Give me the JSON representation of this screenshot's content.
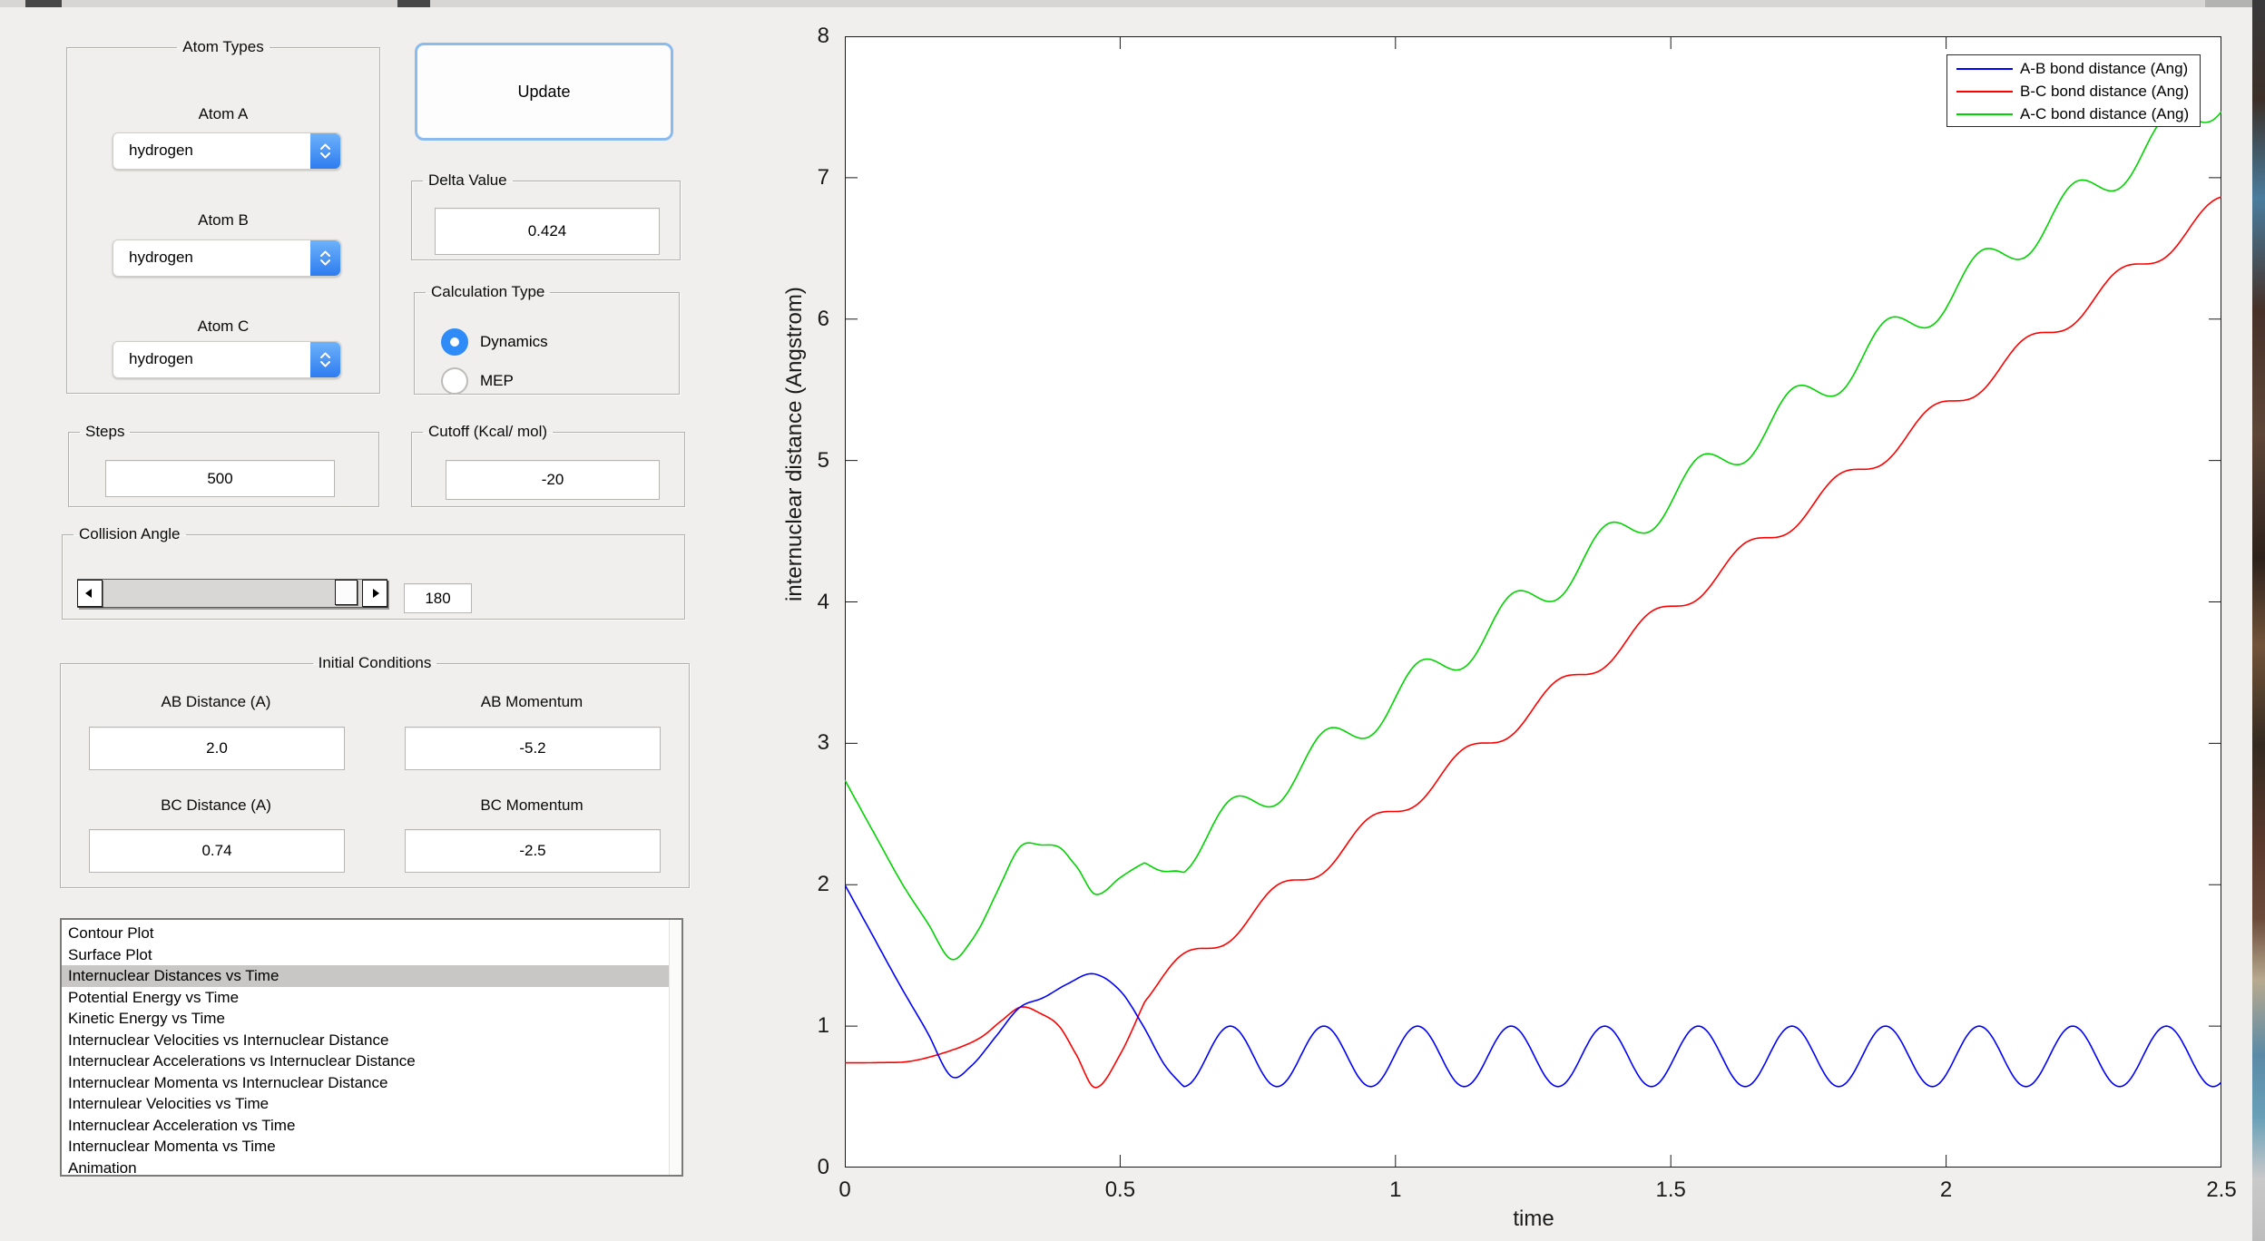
{
  "panels": {
    "atom_types": {
      "title": "Atom Types",
      "fields": [
        {
          "label": "Atom A",
          "value": "hydrogen"
        },
        {
          "label": "Atom B",
          "value": "hydrogen"
        },
        {
          "label": "Atom C",
          "value": "hydrogen"
        }
      ]
    },
    "update_button_label": "Update",
    "delta": {
      "title": "Delta Value",
      "value": "0.424"
    },
    "calc_type": {
      "title": "Calculation Type",
      "options": [
        {
          "label": "Dynamics",
          "selected": true
        },
        {
          "label": "MEP",
          "selected": false
        }
      ]
    },
    "steps": {
      "title": "Steps",
      "value": "500"
    },
    "cutoff": {
      "title": "Cutoff (Kcal/ mol)",
      "value": "-20"
    },
    "collision": {
      "title": "Collision Angle",
      "value": "180"
    },
    "initial": {
      "title": "Initial Conditions",
      "fields": [
        {
          "label": "AB Distance (A)",
          "value": "2.0"
        },
        {
          "label": "AB Momentum",
          "value": "-5.2"
        },
        {
          "label": "BC Distance (A)",
          "value": "0.74"
        },
        {
          "label": "BC Momentum",
          "value": "-2.5"
        }
      ]
    },
    "plot_list": {
      "selected_index": 2,
      "items": [
        "Contour Plot",
        "Surface Plot",
        "Internuclear Distances vs Time",
        "Potential Energy vs Time",
        "Kinetic Energy vs Time",
        "Internuclear Velocities vs Internuclear Distance",
        "Internuclear Accelerations vs Internuclear Distance",
        "Internuclear Momenta vs Internuclear Distance",
        "Internulear Velocities vs Time",
        "Internuclear Acceleration vs Time",
        "Internuclear Momenta vs Time",
        "Animation"
      ]
    }
  },
  "chart_data": {
    "type": "line",
    "title": "",
    "xlabel": "time",
    "ylabel": "internuclear distance (Angstrom)",
    "xlim": [
      0,
      2.5
    ],
    "ylim": [
      0,
      8
    ],
    "xticks": [
      0,
      0.5,
      1,
      1.5,
      2,
      2.5
    ],
    "xtick_labels": [
      "0",
      "0.5",
      "1",
      "1.5",
      "2",
      "2.5"
    ],
    "yticks": [
      0,
      1,
      2,
      3,
      4,
      5,
      6,
      7,
      8
    ],
    "ytick_labels": [
      "0",
      "1",
      "2",
      "3",
      "4",
      "5",
      "6",
      "7",
      "8"
    ],
    "grid": false,
    "legend_position": "top-right",
    "legend": [
      {
        "label": "A-B bond distance (Ang)",
        "color": "#0000ff"
      },
      {
        "label": "B-C bond distance (Ang)",
        "color": "#ff0000"
      },
      {
        "label": "A-C bond distance (Ang)",
        "color": "#00d400"
      }
    ],
    "sample_step": 0.004,
    "series": [
      {
        "name": "A-B",
        "color": "#0000ff",
        "spline": [
          [
            0,
            2.0
          ],
          [
            0.05,
            1.645
          ],
          [
            0.1,
            1.29
          ],
          [
            0.15,
            0.955
          ],
          [
            0.193,
            0.645
          ],
          [
            0.23,
            0.72
          ],
          [
            0.273,
            0.92
          ],
          [
            0.317,
            1.13
          ],
          [
            0.36,
            1.2
          ],
          [
            0.405,
            1.3
          ],
          [
            0.451,
            1.37
          ],
          [
            0.5,
            1.25
          ],
          [
            0.542,
            1.0
          ],
          [
            0.58,
            0.73
          ],
          [
            0.615,
            0.572
          ]
        ],
        "osc": {
          "start": 0.615,
          "mean": 0.786,
          "amp": 0.214,
          "period": 0.17,
          "phase": 0.615
        }
      },
      {
        "name": "B-C",
        "color": "#ff0000",
        "spline": [
          [
            0,
            0.74
          ],
          [
            0.06,
            0.742
          ],
          [
            0.12,
            0.752
          ],
          [
            0.193,
            0.828
          ],
          [
            0.246,
            0.918
          ],
          [
            0.285,
            1.04
          ],
          [
            0.32,
            1.135
          ],
          [
            0.355,
            1.09
          ],
          [
            0.389,
            1.0
          ],
          [
            0.42,
            0.8
          ],
          [
            0.455,
            0.565
          ],
          [
            0.5,
            0.8
          ],
          [
            0.545,
            1.176
          ]
        ],
        "ramp": {
          "start": 0.545,
          "v0": 1.55,
          "t0": 0.655,
          "slope": 2.847,
          "amp": 0.077,
          "period": 0.17,
          "phase": 0.57
        }
      },
      {
        "name": "A-C",
        "color": "#00d400",
        "sum": [
          "A-B",
          "B-C"
        ]
      }
    ]
  }
}
